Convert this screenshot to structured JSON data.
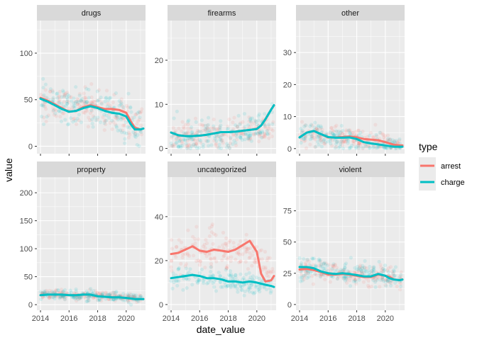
{
  "colors": {
    "arrest": "#F8766D",
    "charge": "#00BFC4",
    "panel_bg": "#EBEBEB",
    "strip_bg": "#D9D9D9",
    "grid": "#FFFFFF"
  },
  "chart_data": {
    "type": "scatter",
    "subtype": "faceted scatter with smoothed trend lines",
    "xlabel": "date_value",
    "ylabel": "value",
    "legend": {
      "title": "type",
      "placement": "right",
      "entries": [
        "arrest",
        "charge"
      ]
    },
    "grid": true,
    "x_ticks": [
      "2014",
      "2016",
      "2018",
      "2020"
    ],
    "xlim": [
      2013.75,
      2021.35
    ],
    "facets": [
      {
        "title": "drugs",
        "ylim": [
          -8,
          135
        ],
        "y_ticks": [
          0,
          50,
          100
        ],
        "scatter": {
          "arrest": {
            "center": [
              50,
              44,
              40,
              36,
              20
            ],
            "spread": 14
          },
          "charge": {
            "center": [
              50,
              44,
              40,
              36,
              18
            ],
            "spread": 16
          }
        },
        "series": [
          {
            "name": "arrest",
            "x": [
              2014,
              2014.5,
              2015,
              2015.5,
              2016,
              2016.5,
              2017,
              2017.5,
              2018,
              2018.5,
              2019,
              2019.5,
              2020,
              2020.3,
              2020.6,
              2021,
              2021.2
            ],
            "y": [
              52,
              49,
              45,
              41,
              37,
              38,
              42,
              44,
              42,
              40,
              40,
              39,
              36,
              27,
              20,
              18,
              19
            ]
          },
          {
            "name": "charge",
            "x": [
              2014,
              2014.5,
              2015,
              2015.5,
              2016,
              2016.5,
              2017,
              2017.5,
              2018,
              2018.5,
              2019,
              2019.5,
              2020,
              2020.3,
              2020.6,
              2021,
              2021.2
            ],
            "y": [
              51,
              48,
              44,
              40,
              37,
              38,
              41,
              43,
              41,
              38,
              36,
              35,
              32,
              24,
              18,
              18,
              19
            ]
          }
        ]
      },
      {
        "title": "firearms",
        "ylim": [
          -1.2,
          29
        ],
        "y_ticks": [
          0,
          10,
          20
        ],
        "scatter": {
          "arrest": {
            "center": [
              3,
              3,
              3.3,
              3.8,
              5
            ],
            "spread": 2.2
          },
          "charge": {
            "center": [
              3,
              3,
              3.3,
              3.8,
              6
            ],
            "spread": 2.6
          }
        },
        "series": [
          {
            "name": "arrest",
            "x": [
              2014,
              2014.5,
              2015,
              2015.5,
              2016,
              2016.5,
              2017,
              2017.5,
              2018,
              2018.5,
              2019,
              2019.5,
              2020,
              2020.3,
              2020.6,
              2021,
              2021.2
            ],
            "y": [
              3.6,
              3,
              2.8,
              2.8,
              2.9,
              3.1,
              3.4,
              3.7,
              3.7,
              3.8,
              4,
              4.2,
              4.4,
              5.2,
              6.6,
              8.8,
              9.8
            ]
          },
          {
            "name": "charge",
            "x": [
              2014,
              2014.5,
              2015,
              2015.5,
              2016,
              2016.5,
              2017,
              2017.5,
              2018,
              2018.5,
              2019,
              2019.5,
              2020,
              2020.3,
              2020.6,
              2021,
              2021.2
            ],
            "y": [
              3.6,
              3,
              2.8,
              2.8,
              2.9,
              3.1,
              3.4,
              3.7,
              3.7,
              3.8,
              4,
              4.2,
              4.4,
              5.2,
              6.6,
              8.8,
              9.8
            ]
          }
        ]
      },
      {
        "title": "other",
        "ylim": [
          -1.6,
          40
        ],
        "y_ticks": [
          0,
          10,
          20,
          30
        ],
        "scatter": {
          "arrest": {
            "center": [
              4,
              4,
              3,
              2,
              0.8
            ],
            "spread": 2.5
          },
          "charge": {
            "center": [
              4,
              4,
              3,
              1.5,
              0.6
            ],
            "spread": 2.5
          }
        },
        "series": [
          {
            "name": "arrest",
            "x": [
              2014,
              2014.5,
              2015,
              2015.5,
              2016,
              2016.5,
              2017,
              2017.5,
              2018,
              2018.5,
              2019,
              2019.5,
              2020,
              2020.3,
              2020.6,
              2021,
              2021.2
            ],
            "y": [
              3.5,
              5,
              5.5,
              4.5,
              3.5,
              3.5,
              3.6,
              3.8,
              3.5,
              3,
              2.8,
              2.6,
              2,
              1.6,
              1.2,
              1,
              1
            ]
          },
          {
            "name": "charge",
            "x": [
              2014,
              2014.5,
              2015,
              2015.5,
              2016,
              2016.5,
              2017,
              2017.5,
              2018,
              2018.5,
              2019,
              2019.5,
              2020,
              2020.3,
              2020.6,
              2021,
              2021.2
            ],
            "y": [
              3.5,
              5,
              5.5,
              4.5,
              3.6,
              3.4,
              3.4,
              3.5,
              3,
              2,
              1.6,
              1.3,
              1,
              0.8,
              0.6,
              0.6,
              0.6
            ]
          }
        ]
      },
      {
        "title": "property",
        "ylim": [
          -10,
          228
        ],
        "y_ticks": [
          0,
          50,
          100,
          150,
          200
        ],
        "scatter": {
          "arrest": {
            "center": [
              18,
              18,
              17,
              14,
              10
            ],
            "spread": 6
          },
          "charge": {
            "center": [
              18,
              18,
              17,
              14,
              10
            ],
            "spread": 7
          }
        },
        "series": [
          {
            "name": "arrest",
            "x": [
              2014,
              2014.5,
              2015,
              2015.5,
              2016,
              2016.5,
              2017,
              2017.5,
              2018,
              2018.5,
              2019,
              2019.5,
              2020,
              2020.3,
              2020.6,
              2021,
              2021.2
            ],
            "y": [
              17,
              18,
              18,
              18,
              17,
              17,
              18,
              18,
              15,
              14,
              13,
              13,
              12,
              11,
              10,
              10,
              10
            ]
          },
          {
            "name": "charge",
            "x": [
              2014,
              2014.5,
              2015,
              2015.5,
              2016,
              2016.5,
              2017,
              2017.5,
              2018,
              2018.5,
              2019,
              2019.5,
              2020,
              2020.3,
              2020.6,
              2021,
              2021.2
            ],
            "y": [
              17,
              18,
              18,
              18,
              17,
              17,
              18,
              18,
              15,
              14,
              13,
              13,
              12,
              11,
              10,
              10,
              10
            ]
          }
        ]
      },
      {
        "title": "uncategorized",
        "ylim": [
          -2.6,
          58
        ],
        "y_ticks": [
          0,
          20,
          40
        ],
        "scatter": {
          "arrest": {
            "center": [
              23,
              25,
              24,
              26,
              13
            ],
            "spread": 6
          },
          "charge": {
            "center": [
              12,
              13,
              11,
              10,
              8
            ],
            "spread": 3.5
          }
        },
        "series": [
          {
            "name": "arrest",
            "x": [
              2014,
              2014.5,
              2015,
              2015.5,
              2016,
              2016.5,
              2017,
              2017.5,
              2018,
              2018.5,
              2019,
              2019.5,
              2020,
              2020.3,
              2020.6,
              2021,
              2021.2
            ],
            "y": [
              23,
              23.5,
              25,
              26.5,
              24.5,
              24,
              25,
              24.5,
              24,
              25,
              27,
              29,
              24,
              14,
              10.5,
              11,
              13
            ]
          },
          {
            "name": "charge",
            "x": [
              2014,
              2014.5,
              2015,
              2015.5,
              2016,
              2016.5,
              2017,
              2017.5,
              2018,
              2018.5,
              2019,
              2019.5,
              2020,
              2020.3,
              2020.6,
              2021,
              2021.2
            ],
            "y": [
              12,
              12.5,
              13,
              13.5,
              13,
              12,
              12,
              11.5,
              10.5,
              10.5,
              10,
              10.5,
              10,
              9.5,
              9,
              8.5,
              8
            ]
          }
        ]
      },
      {
        "title": "violent",
        "ylim": [
          -4.6,
          102
        ],
        "y_ticks": [
          0,
          25,
          50,
          75
        ],
        "scatter": {
          "arrest": {
            "center": [
              28,
              27,
              24,
              23,
              20
            ],
            "spread": 6
          },
          "charge": {
            "center": [
              29,
              28,
              25,
              24,
              20
            ],
            "spread": 6.5
          }
        },
        "series": [
          {
            "name": "arrest",
            "x": [
              2014,
              2014.5,
              2015,
              2015.5,
              2016,
              2016.5,
              2017,
              2017.5,
              2018,
              2018.5,
              2019,
              2019.5,
              2020,
              2020.3,
              2020.6,
              2021,
              2021.2
            ],
            "y": [
              28,
              28.5,
              27.5,
              26,
              24,
              24,
              24.5,
              24,
              23,
              22,
              22,
              24,
              23,
              22,
              20,
              19.5,
              20
            ]
          },
          {
            "name": "charge",
            "x": [
              2014,
              2014.5,
              2015,
              2015.5,
              2016,
              2016.5,
              2017,
              2017.5,
              2018,
              2018.5,
              2019,
              2019.5,
              2020,
              2020.3,
              2020.6,
              2021,
              2021.2
            ],
            "y": [
              30,
              30,
              29,
              26.5,
              25,
              24.5,
              25,
              24.5,
              23.5,
              22.5,
              22.5,
              24.5,
              23,
              21,
              20,
              19.5,
              20
            ]
          }
        ]
      }
    ]
  }
}
